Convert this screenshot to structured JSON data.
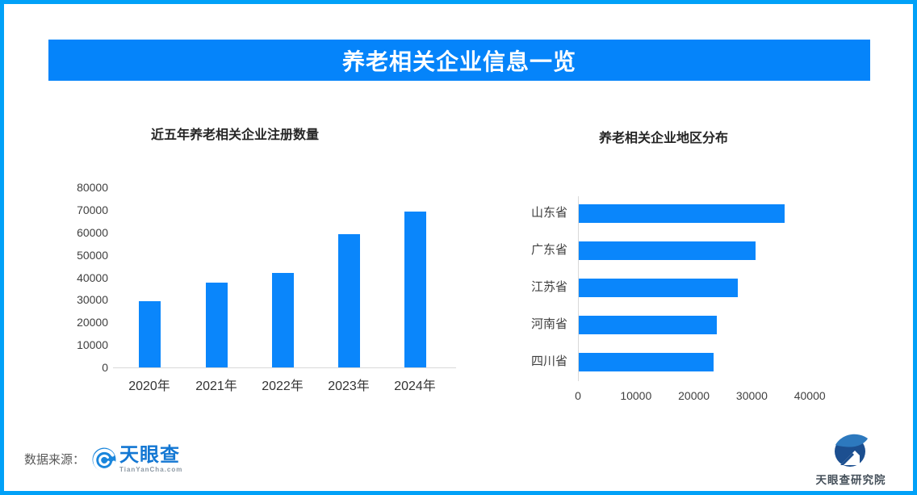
{
  "banner": {
    "title": "养老相关企业信息一览"
  },
  "colors": {
    "page_border": "#01A1F8",
    "banner_bg": "#0584FA",
    "bar": "#0A86FB",
    "axis_line": "#D9D9D9",
    "tick_text": "#404040",
    "chart_title_text": "#262626",
    "source_text": "#595959",
    "logo_blue": "#1377D3",
    "logo_subtext": "#8C98A3",
    "research_text": "#45505A"
  },
  "chart_data": [
    {
      "type": "bar",
      "orientation": "vertical",
      "title": "近五年养老相关企业注册数量",
      "categories": [
        "2020年",
        "2021年",
        "2022年",
        "2023年",
        "2024年"
      ],
      "values": [
        29500,
        37700,
        42000,
        59300,
        69400
      ],
      "xlabel": "",
      "ylabel": "",
      "ylim": [
        0,
        80000
      ],
      "ytick_step": 10000,
      "grid": false,
      "legend": false
    },
    {
      "type": "bar",
      "orientation": "horizontal",
      "title": "养老相关企业地区分布",
      "categories": [
        "山东省",
        "广东省",
        "江苏省",
        "河南省",
        "四川省"
      ],
      "values": [
        35500,
        30500,
        27400,
        23800,
        23200
      ],
      "xlabel": "",
      "ylabel": "",
      "xlim": [
        0,
        40000
      ],
      "xtick_step": 10000,
      "grid": false,
      "legend": false
    }
  ],
  "footer": {
    "source_label": "数据来源：",
    "tianyancha": {
      "name": "天眼查",
      "domain": "TianYanCha.com"
    },
    "research": {
      "label": "天眼查研究院"
    }
  }
}
